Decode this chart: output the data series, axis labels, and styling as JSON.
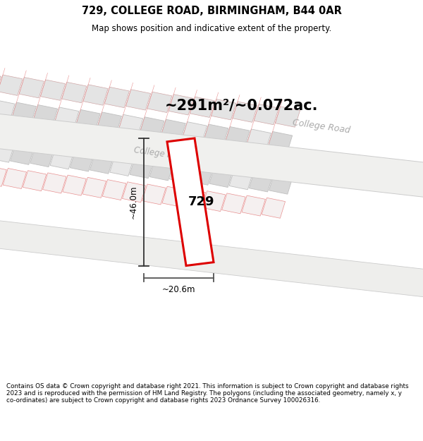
{
  "title": "729, COLLEGE ROAD, BIRMINGHAM, B44 0AR",
  "subtitle": "Map shows position and indicative extent of the property.",
  "area_label": "~291m²/~0.072ac.",
  "plot_number": "729",
  "dim_height": "~46.0m",
  "dim_width": "~20.6m",
  "college_road_label": "College Road",
  "footer": "Contains OS data © Crown copyright and database right 2021. This information is subject to Crown copyright and database rights 2023 and is reproduced with the permission of HM Land Registry. The polygons (including the associated geometry, namely x, y co-ordinates) are subject to Crown copyright and database rights 2023 Ordnance Survey 100026316.",
  "bg_color": "#ffffff",
  "map_bg": "#ffffff",
  "title_bg": "#ffffff",
  "footer_bg": "#ffffff",
  "plot_color": "#dd0000",
  "building_fill_dark": "#d8d8d8",
  "building_fill_light": "#eeeeee",
  "building_edge_red": "#e8a0a0",
  "building_edge_gray": "#c8c8c8",
  "road_fill": "#e8e8e8",
  "college_road_color": "#aaaaaa",
  "dim_line_color": "#333333"
}
